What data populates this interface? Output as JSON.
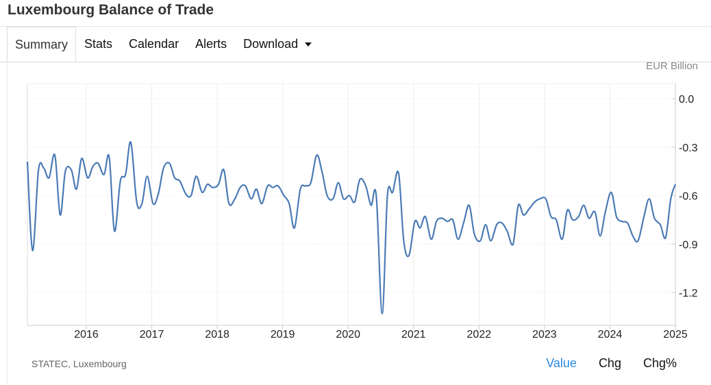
{
  "page": {
    "title": "Luxembourg Balance of Trade"
  },
  "tabs": [
    {
      "label": "Summary",
      "active": true
    },
    {
      "label": "Stats"
    },
    {
      "label": "Calendar"
    },
    {
      "label": "Alerts"
    },
    {
      "label": "Download",
      "dropdown": true
    }
  ],
  "chart": {
    "unit_label": "EUR Billion",
    "source": "STATEC, Luxembourg"
  },
  "toggles": [
    {
      "label": "Value",
      "active": true
    },
    {
      "label": "Chg"
    },
    {
      "label": "Chg%"
    }
  ],
  "colors": {
    "line": "#4a7ab5",
    "active_toggle": "#2a8ae4",
    "grid": "#eeeeee"
  },
  "chart_data": {
    "type": "line",
    "title": "",
    "xlabel": "",
    "ylabel": "EUR Billion",
    "ylim": [
      -1.35,
      0.1
    ],
    "xlim": [
      2015.1,
      2025.0
    ],
    "yticks": [
      "0.0",
      "-0.3",
      "-0.6",
      "-0.9",
      "-1.2"
    ],
    "ytick_values": [
      0.0,
      -0.3,
      -0.6,
      -0.9,
      -1.2
    ],
    "xticks": [
      "2016",
      "2017",
      "2018",
      "2019",
      "2020",
      "2021",
      "2022",
      "2023",
      "2024",
      "2025"
    ],
    "xtick_values": [
      2016,
      2017,
      2018,
      2019,
      2020,
      2021,
      2022,
      2023,
      2024,
      2025
    ],
    "grid": true,
    "legend": "none",
    "series": [
      {
        "x": [
          2015.1,
          2015.18,
          2015.27,
          2015.35,
          2015.43,
          2015.52,
          2015.6,
          2015.68,
          2015.77,
          2015.85,
          2015.93,
          2016.02,
          2016.1,
          2016.18,
          2016.27,
          2016.35,
          2016.43,
          2016.52,
          2016.6,
          2016.68,
          2016.77,
          2016.85,
          2016.93,
          2017.02,
          2017.1,
          2017.18,
          2017.27,
          2017.35,
          2017.43,
          2017.52,
          2017.6,
          2017.68,
          2017.77,
          2017.85,
          2017.93,
          2018.02,
          2018.1,
          2018.18,
          2018.27,
          2018.35,
          2018.43,
          2018.52,
          2018.6,
          2018.68,
          2018.77,
          2018.85,
          2018.93,
          2019.02,
          2019.1,
          2019.18,
          2019.27,
          2019.35,
          2019.43,
          2019.52,
          2019.6,
          2019.68,
          2019.77,
          2019.85,
          2019.93,
          2020.02,
          2020.1,
          2020.18,
          2020.27,
          2020.35,
          2020.43,
          2020.52,
          2020.6,
          2020.68,
          2020.77,
          2020.85,
          2020.93,
          2021.02,
          2021.1,
          2021.18,
          2021.27,
          2021.35,
          2021.43,
          2021.52,
          2021.6,
          2021.68,
          2021.77,
          2021.85,
          2021.93,
          2022.02,
          2022.1,
          2022.18,
          2022.27,
          2022.35,
          2022.43,
          2022.52,
          2022.6,
          2022.68,
          2022.77,
          2022.85,
          2022.93,
          2023.02,
          2023.1,
          2023.18,
          2023.27,
          2023.35,
          2023.43,
          2023.52,
          2023.6,
          2023.68,
          2023.77,
          2023.85,
          2023.93,
          2024.02,
          2024.1,
          2024.18,
          2024.27,
          2024.35,
          2024.43,
          2024.52,
          2024.6,
          2024.68,
          2024.77,
          2024.85,
          2024.93,
          2025.0
        ],
        "values": [
          -0.39,
          -0.94,
          -0.44,
          -0.43,
          -0.49,
          -0.35,
          -0.72,
          -0.45,
          -0.44,
          -0.56,
          -0.37,
          -0.49,
          -0.42,
          -0.4,
          -0.47,
          -0.36,
          -0.82,
          -0.51,
          -0.47,
          -0.27,
          -0.64,
          -0.65,
          -0.48,
          -0.65,
          -0.59,
          -0.43,
          -0.4,
          -0.49,
          -0.51,
          -0.59,
          -0.6,
          -0.48,
          -0.58,
          -0.53,
          -0.55,
          -0.53,
          -0.44,
          -0.65,
          -0.62,
          -0.55,
          -0.54,
          -0.62,
          -0.56,
          -0.65,
          -0.54,
          -0.55,
          -0.54,
          -0.6,
          -0.65,
          -0.8,
          -0.56,
          -0.54,
          -0.52,
          -0.35,
          -0.45,
          -0.6,
          -0.62,
          -0.52,
          -0.62,
          -0.6,
          -0.64,
          -0.5,
          -0.54,
          -0.66,
          -0.6,
          -1.33,
          -0.6,
          -0.58,
          -0.46,
          -0.88,
          -0.97,
          -0.76,
          -0.8,
          -0.73,
          -0.87,
          -0.76,
          -0.74,
          -0.76,
          -0.75,
          -0.87,
          -0.76,
          -0.66,
          -0.84,
          -0.88,
          -0.78,
          -0.88,
          -0.78,
          -0.77,
          -0.82,
          -0.9,
          -0.66,
          -0.72,
          -0.68,
          -0.64,
          -0.62,
          -0.62,
          -0.73,
          -0.75,
          -0.87,
          -0.69,
          -0.75,
          -0.73,
          -0.66,
          -0.74,
          -0.7,
          -0.85,
          -0.7,
          -0.58,
          -0.73,
          -0.76,
          -0.77,
          -0.85,
          -0.88,
          -0.73,
          -0.62,
          -0.74,
          -0.78,
          -0.86,
          -0.62,
          -0.53
        ]
      }
    ]
  }
}
